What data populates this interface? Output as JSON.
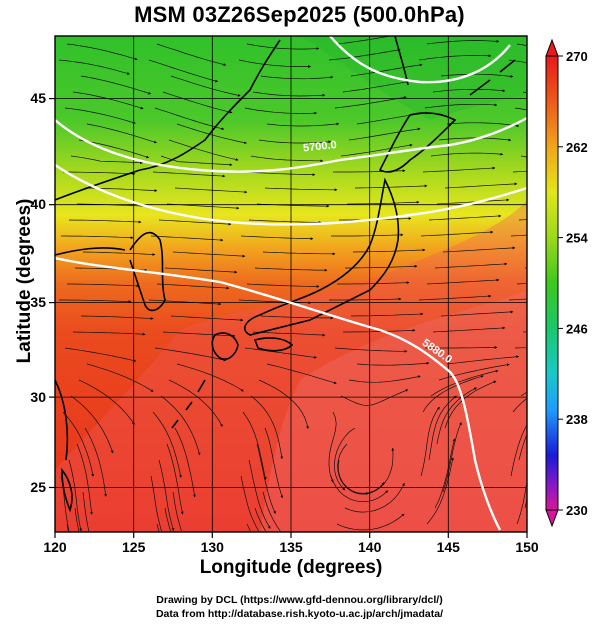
{
  "title": "MSM 03Z26Sep2025 (500.0hPa)",
  "xaxis": {
    "label": "Longitude (degrees)",
    "range": [
      120,
      150
    ],
    "ticks": [
      120,
      125,
      130,
      135,
      140,
      145,
      150
    ]
  },
  "yaxis": {
    "label": "Latitude  (degrees)",
    "range": [
      22.4,
      47.6
    ],
    "ticks": [
      25,
      30,
      35,
      40,
      45
    ]
  },
  "colorbar": {
    "ticks": [
      "270",
      "262",
      "254",
      "246",
      "238",
      "230"
    ],
    "range": [
      230,
      270
    ],
    "colors": [
      "#d9169a",
      "#7e1ac8",
      "#1a1ad6",
      "#1e9bff",
      "#19c9c9",
      "#19c86a",
      "#3ec81c",
      "#9bd919",
      "#e1e619",
      "#f0a519",
      "#ec5a19",
      "#e81919"
    ]
  },
  "contours": [
    {
      "label": "5700.0"
    },
    {
      "label": "5880.0"
    }
  ],
  "credits": {
    "line1": "Drawing by DCL (https://www.gfd-dennou.org/library/dcl/)",
    "line2": "Data from http://database.rish.kyoto-u.ac.jp/arch/jmadata/"
  }
}
